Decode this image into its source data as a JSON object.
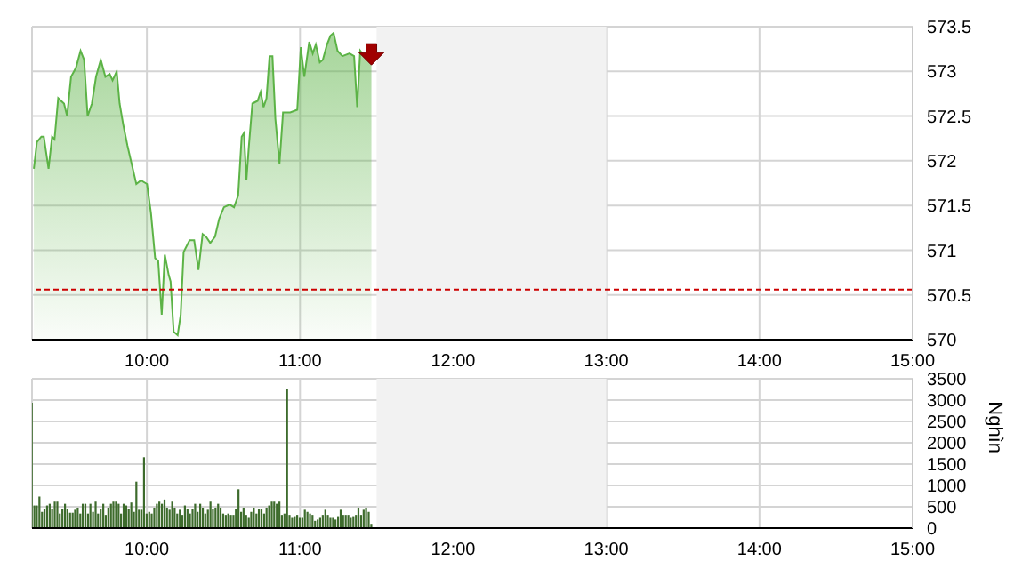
{
  "chart_data": [
    {
      "type": "area",
      "x": [
        9.262,
        9.282,
        9.311,
        9.327,
        9.358,
        9.381,
        9.397,
        9.421,
        9.459,
        9.479,
        9.505,
        9.537,
        9.567,
        9.59,
        9.613,
        9.641,
        9.668,
        9.699,
        9.729,
        9.757,
        9.776,
        9.803,
        9.822,
        9.845,
        9.873,
        9.9,
        9.931,
        9.961,
        10.001,
        10.027,
        10.054,
        10.074,
        10.097,
        10.117,
        10.143,
        10.155,
        10.175,
        10.201,
        10.221,
        10.24,
        10.279,
        10.309,
        10.337,
        10.364,
        10.387,
        10.414,
        10.445,
        10.472,
        10.503,
        10.541,
        10.569,
        10.596,
        10.619,
        10.634,
        10.65,
        10.665,
        10.689,
        10.723,
        10.743,
        10.762,
        10.781,
        10.801,
        10.82,
        10.839,
        10.866,
        10.889,
        10.936,
        10.982,
        11.005,
        11.028,
        11.06,
        11.083,
        11.103,
        11.129,
        11.149,
        11.176,
        11.199,
        11.219,
        11.245,
        11.277,
        11.323,
        11.353,
        11.373,
        11.393,
        11.419,
        11.466
      ],
      "series": [
        {
          "color": "#5cb346",
          "values": [
            571.91,
            572.21,
            572.27,
            572.27,
            571.91,
            572.27,
            572.24,
            572.7,
            572.64,
            572.5,
            572.94,
            573.04,
            573.23,
            573.13,
            572.5,
            572.64,
            572.94,
            573.13,
            572.94,
            572.97,
            572.9,
            573.0,
            572.64,
            572.41,
            572.17,
            571.97,
            571.74,
            571.78,
            571.74,
            571.41,
            570.91,
            570.88,
            570.28,
            570.95,
            570.72,
            570.65,
            570.09,
            570.05,
            570.28,
            570.98,
            571.11,
            571.11,
            570.78,
            571.18,
            571.15,
            571.08,
            571.15,
            571.35,
            571.48,
            571.51,
            571.48,
            571.61,
            572.27,
            572.31,
            571.78,
            572.14,
            572.64,
            572.67,
            572.77,
            572.6,
            572.7,
            573.17,
            573.17,
            572.47,
            571.97,
            572.54,
            572.54,
            572.57,
            573.27,
            572.94,
            573.33,
            573.2,
            573.3,
            573.1,
            573.13,
            573.3,
            573.4,
            573.43,
            573.23,
            573.17,
            573.2,
            573.17,
            572.6,
            573.23,
            573.17,
            573.17
          ]
        }
      ],
      "xlim": [
        9.25,
        15
      ],
      "xticks": [
        {
          "value": 10,
          "label": "10:00"
        },
        {
          "value": 11,
          "label": "11:00"
        },
        {
          "value": 12,
          "label": "12:00"
        },
        {
          "value": 13,
          "label": "13:00"
        },
        {
          "value": 14,
          "label": "14:00"
        },
        {
          "value": 15,
          "label": "15:00"
        }
      ],
      "ylim": [
        570,
        573.5
      ],
      "yticks": [
        570,
        570.5,
        571,
        571.5,
        572,
        572.5,
        573,
        573.5
      ],
      "grid": true,
      "bands": [
        {
          "axis": "x",
          "from": 11.5,
          "to": 13,
          "color": "#f2f2f2"
        }
      ],
      "ref_lines": [
        {
          "axis": "y",
          "value": 570.56,
          "color": "#cc0000",
          "line_style": "dashed"
        }
      ]
    },
    {
      "type": "bar",
      "ylabel": "Nghìn",
      "x": [
        9.25,
        9.267,
        9.283,
        9.3,
        9.317,
        9.333,
        9.35,
        9.367,
        9.383,
        9.4,
        9.417,
        9.433,
        9.45,
        9.467,
        9.483,
        9.5,
        9.517,
        9.533,
        9.55,
        9.567,
        9.583,
        9.6,
        9.617,
        9.633,
        9.65,
        9.667,
        9.683,
        9.7,
        9.717,
        9.733,
        9.75,
        9.767,
        9.783,
        9.8,
        9.817,
        9.833,
        9.85,
        9.867,
        9.883,
        9.9,
        9.917,
        9.933,
        9.95,
        9.967,
        9.983,
        10,
        10.017,
        10.033,
        10.05,
        10.067,
        10.083,
        10.1,
        10.117,
        10.133,
        10.15,
        10.167,
        10.183,
        10.2,
        10.217,
        10.233,
        10.25,
        10.267,
        10.283,
        10.3,
        10.317,
        10.333,
        10.35,
        10.367,
        10.383,
        10.4,
        10.417,
        10.433,
        10.45,
        10.467,
        10.483,
        10.5,
        10.517,
        10.533,
        10.55,
        10.567,
        10.583,
        10.6,
        10.617,
        10.633,
        10.65,
        10.667,
        10.683,
        10.7,
        10.717,
        10.733,
        10.75,
        10.767,
        10.783,
        10.8,
        10.817,
        10.833,
        10.85,
        10.867,
        10.883,
        10.9,
        10.917,
        10.933,
        10.95,
        10.967,
        10.983,
        11,
        11.017,
        11.033,
        11.05,
        11.067,
        11.083,
        11.1,
        11.117,
        11.133,
        11.15,
        11.167,
        11.183,
        11.2,
        11.217,
        11.233,
        11.25,
        11.267,
        11.283,
        11.3,
        11.317,
        11.333,
        11.35,
        11.367,
        11.383,
        11.4,
        11.417,
        11.433,
        11.45,
        11.467
      ],
      "series": [
        {
          "color": "#3d6b2c",
          "values": [
            2940,
            530,
            530,
            740,
            380,
            450,
            530,
            570,
            450,
            620,
            620,
            340,
            450,
            570,
            450,
            360,
            360,
            430,
            480,
            340,
            570,
            570,
            340,
            570,
            380,
            620,
            340,
            450,
            570,
            310,
            480,
            570,
            620,
            620,
            570,
            340,
            570,
            530,
            450,
            600,
            380,
            1090,
            430,
            430,
            1660,
            340,
            380,
            340,
            480,
            570,
            620,
            570,
            670,
            480,
            430,
            620,
            480,
            340,
            430,
            310,
            530,
            450,
            340,
            450,
            570,
            380,
            570,
            480,
            340,
            430,
            620,
            450,
            480,
            570,
            480,
            340,
            310,
            340,
            310,
            310,
            450,
            910,
            380,
            480,
            310,
            240,
            380,
            480,
            340,
            450,
            450,
            340,
            480,
            530,
            620,
            620,
            570,
            620,
            310,
            340,
            3250,
            310,
            240,
            280,
            310,
            240,
            240,
            430,
            380,
            340,
            310,
            170,
            200,
            240,
            310,
            430,
            310,
            240,
            240,
            200,
            280,
            430,
            310,
            310,
            310,
            240,
            280,
            310,
            480,
            310,
            430,
            480,
            380,
            100
          ]
        }
      ],
      "xlim": [
        9.25,
        15
      ],
      "xticks": [
        {
          "value": 10,
          "label": "10:00"
        },
        {
          "value": 11,
          "label": "11:00"
        },
        {
          "value": 12,
          "label": "12:00"
        },
        {
          "value": 13,
          "label": "13:00"
        },
        {
          "value": 14,
          "label": "14:00"
        },
        {
          "value": 15,
          "label": "15:00"
        }
      ],
      "ylim": [
        0,
        3500
      ],
      "yticks": [
        0,
        500,
        1000,
        1500,
        2000,
        2500,
        3000,
        3500
      ],
      "grid": true,
      "bands": [
        {
          "axis": "x",
          "from": 11.5,
          "to": 13,
          "color": "#f2f2f2"
        }
      ]
    }
  ]
}
